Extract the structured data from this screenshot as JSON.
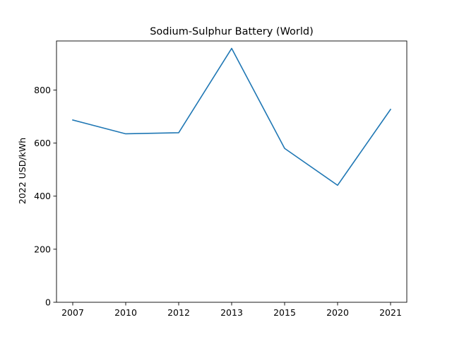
{
  "chart_data": {
    "type": "line",
    "title": "Sodium-Sulphur Battery (World)",
    "xlabel": "",
    "ylabel": "2022 USD/kWh",
    "categories": [
      "2007",
      "2010",
      "2012",
      "2013",
      "2015",
      "2020",
      "2021"
    ],
    "series": [
      {
        "values": [
          687,
          635,
          639,
          957,
          580,
          441,
          727
        ],
        "color": "#1f77b4"
      }
    ],
    "ylim": [
      0,
      985
    ],
    "yticks": [
      0,
      200,
      400,
      600,
      800
    ],
    "grid": false,
    "legend": "none"
  }
}
